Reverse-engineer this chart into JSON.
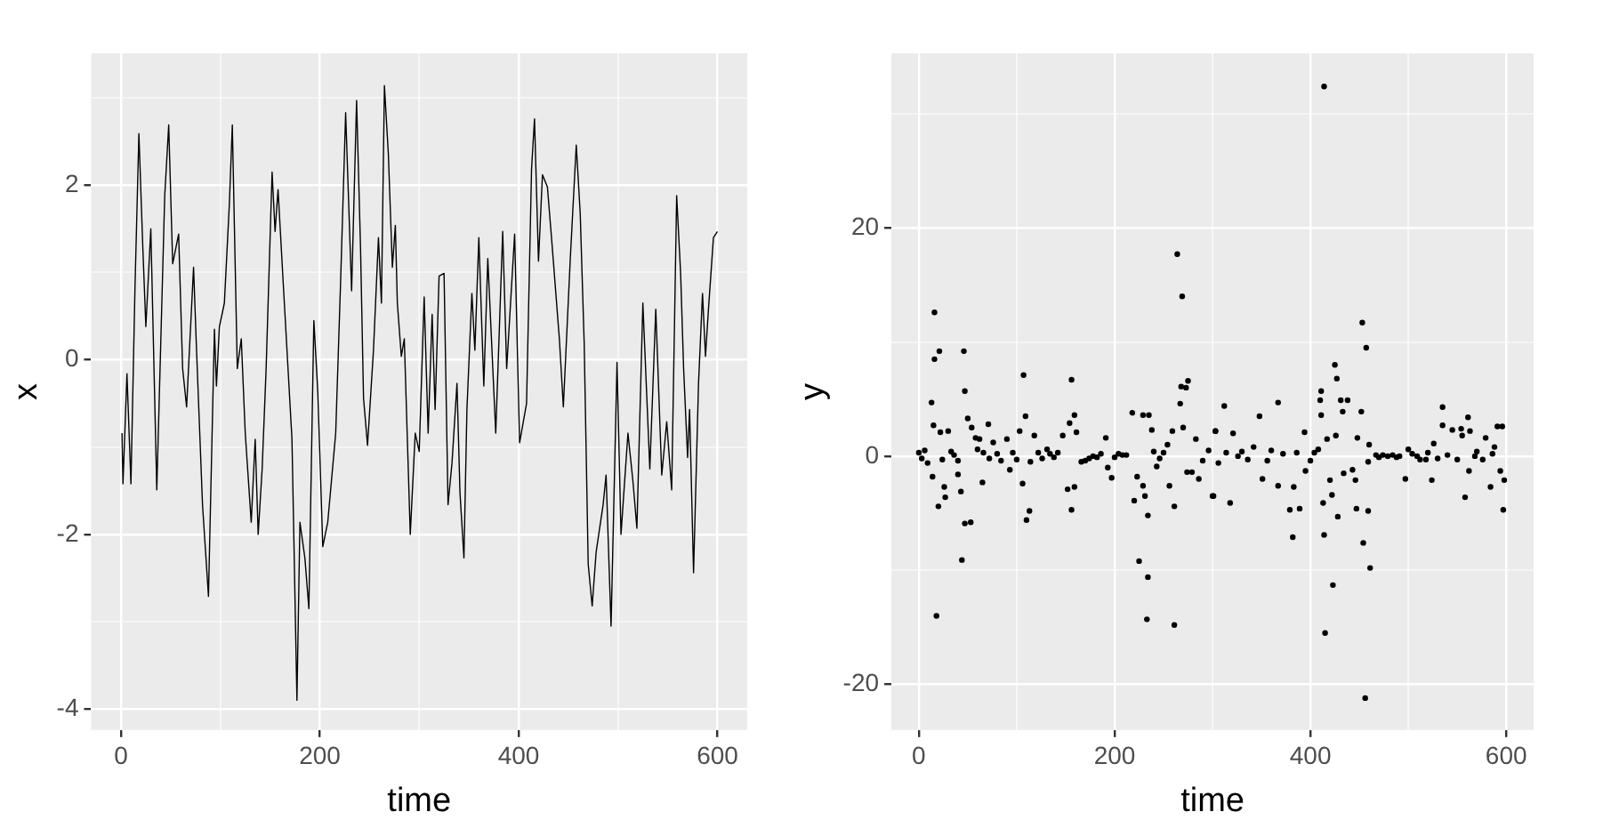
{
  "chart_data": [
    {
      "type": "line",
      "xlabel": "time",
      "ylabel": "x",
      "color": "#000000",
      "marker": "none",
      "line_style": "solid",
      "grid": true,
      "xlim": [
        -30,
        630
      ],
      "ylim": [
        -4.24,
        3.51
      ],
      "xticks": [
        0,
        {
          "value": 100,
          "label": null
        },
        200,
        {
          "value": 300,
          "label": null
        },
        400,
        {
          "value": 500,
          "label": null
        },
        600
      ],
      "yticks": [
        -4,
        {
          "value": -3,
          "label": null
        },
        -2,
        {
          "value": -1,
          "label": null
        },
        0,
        {
          "value": 1,
          "label": null
        },
        2,
        {
          "value": 3,
          "label": null
        }
      ],
      "x": [
        1,
        2,
        6,
        10,
        14,
        18,
        22,
        25,
        30,
        36,
        44,
        48,
        52,
        58,
        62,
        66,
        73,
        76,
        82,
        88,
        94,
        96,
        99,
        104,
        109,
        112,
        117,
        121,
        125,
        131,
        135,
        138,
        142,
        146,
        152,
        155,
        158,
        163,
        169,
        172,
        177,
        180,
        185,
        189,
        194,
        198,
        203,
        208,
        216,
        221,
        226,
        232,
        237,
        241,
        244,
        248,
        254,
        259,
        262,
        265,
        269,
        273,
        276,
        278,
        282,
        285,
        291,
        296,
        300,
        305,
        309,
        313,
        316,
        320,
        325,
        329,
        333,
        338,
        341,
        345,
        348,
        353,
        356,
        360,
        365,
        369,
        377,
        384,
        388,
        396,
        401,
        408,
        413,
        416,
        420,
        424,
        429,
        434,
        441,
        445,
        452,
        458,
        462,
        466,
        470,
        474,
        478,
        485,
        488,
        493,
        499,
        503,
        510,
        515,
        519,
        525,
        532,
        538,
        544,
        549,
        554,
        559,
        563,
        566,
        570,
        572,
        576,
        581,
        585,
        588,
        591,
        596,
        600
      ],
      "values": [
        -0.84,
        -1.42,
        -0.16,
        -1.42,
        0.79,
        2.59,
        1.27,
        0.38,
        1.5,
        -1.49,
        1.88,
        2.69,
        1.1,
        1.44,
        -0.1,
        -0.54,
        1.06,
        0.11,
        -1.66,
        -2.71,
        0.35,
        -0.3,
        0.38,
        0.65,
        1.78,
        2.69,
        -0.1,
        0.24,
        -0.84,
        -1.86,
        -0.91,
        -2.0,
        -1.25,
        -0.1,
        2.15,
        1.47,
        1.95,
        0.92,
        -0.3,
        -0.91,
        -3.9,
        -1.86,
        -2.27,
        -2.85,
        0.45,
        -0.37,
        -2.14,
        -1.86,
        -0.84,
        0.92,
        2.83,
        0.79,
        2.97,
        1.27,
        -0.44,
        -0.98,
        0.11,
        1.4,
        0.65,
        3.14,
        2.35,
        1.06,
        1.54,
        0.65,
        0.04,
        0.24,
        -2.0,
        -0.84,
        -1.05,
        0.72,
        -0.84,
        0.52,
        -0.57,
        0.96,
        0.99,
        -1.66,
        -1.18,
        -0.27,
        -1.52,
        -2.27,
        -0.57,
        0.76,
        0.11,
        1.4,
        -0.3,
        1.16,
        -0.84,
        1.47,
        -0.1,
        1.44,
        -0.95,
        -0.5,
        2.18,
        2.76,
        1.13,
        2.12,
        1.98,
        1.27,
        0.24,
        -0.54,
        1.16,
        2.46,
        1.67,
        0.18,
        -2.34,
        -2.82,
        -2.2,
        -1.66,
        -1.32,
        -3.05,
        -0.03,
        -2.0,
        -0.84,
        -1.39,
        -1.93,
        0.65,
        -1.25,
        0.58,
        -1.32,
        -0.71,
        -1.49,
        1.88,
        0.99,
        -0.1,
        -1.12,
        -0.57,
        -2.44,
        -0.27,
        0.76,
        0.04,
        0.58,
        1.4,
        1.47
      ]
    },
    {
      "type": "scatter",
      "xlabel": "time",
      "ylabel": "y",
      "color": "#000000",
      "marker": "circle",
      "grid": true,
      "xlim": [
        -28,
        628
      ],
      "ylim": [
        -24,
        35.3
      ],
      "xticks": [
        0,
        {
          "value": 100,
          "label": null
        },
        200,
        {
          "value": 300,
          "label": null
        },
        400,
        {
          "value": 500,
          "label": null
        },
        600
      ],
      "yticks": [
        -20,
        {
          "value": -10,
          "label": null
        },
        0,
        {
          "value": 10,
          "label": null
        },
        20,
        {
          "value": 30,
          "label": null
        }
      ],
      "x": [
        16,
        16,
        21,
        13,
        15,
        18,
        20,
        14,
        26,
        27,
        22,
        30,
        46,
        47,
        50,
        44,
        47,
        53,
        43,
        40,
        54,
        58,
        62,
        65,
        71,
        76,
        90,
        93,
        103,
        107,
        109,
        106,
        110,
        113,
        118,
        131,
        147,
        152,
        154,
        156,
        159,
        156,
        159,
        161,
        166,
        178,
        191,
        193,
        197,
        208,
        218,
        220,
        223,
        225,
        229,
        231,
        234,
        234,
        233,
        229,
        235,
        238,
        243,
        254,
        256,
        259,
        261,
        261,
        264,
        269,
        267,
        268,
        273,
        275,
        270,
        274,
        279,
        283,
        286,
        301,
        303,
        300,
        318,
        312,
        303,
        321,
        326,
        348,
        351,
        367,
        367,
        379,
        382,
        383,
        389,
        394,
        395,
        408,
        410,
        411,
        411,
        413,
        414,
        414,
        415,
        417,
        420,
        423,
        425,
        427,
        431,
        433,
        438,
        428,
        422,
        426,
        434,
        443,
        446,
        447,
        448,
        452,
        453,
        454,
        457,
        456,
        459,
        461,
        460,
        459,
        467,
        479,
        491,
        497,
        500,
        509,
        518,
        524,
        526,
        535,
        535,
        545,
        554,
        555,
        558,
        561,
        563,
        562,
        568,
        579,
        584,
        588,
        591,
        594,
        596,
        598,
        597,
        0,
        3,
        6,
        9,
        24,
        33,
        36,
        40,
        60,
        66,
        72,
        80,
        84,
        96,
        100,
        114,
        122,
        126,
        134,
        138,
        142,
        170,
        174,
        182,
        186,
        200,
        204,
        212,
        240,
        246,
        250,
        290,
        296,
        306,
        314,
        330,
        336,
        342,
        356,
        360,
        372,
        386,
        400,
        404,
        470,
        474,
        484,
        488,
        504,
        512,
        520,
        530,
        540,
        550,
        570,
        576,
        586
      ],
      "values": [
        12.6,
        8.5,
        9.2,
        4.7,
        2.7,
        -14,
        -4.4,
        -1.8,
        -2.7,
        -3.6,
        2.1,
        2.2,
        9.2,
        5.7,
        3.3,
        -9.1,
        -5.9,
        -5.8,
        -3.1,
        -1.6,
        2.5,
        1.6,
        1.5,
        -2.3,
        2.8,
        1.2,
        1.5,
        -1.2,
        2.2,
        7.1,
        3.5,
        -2.4,
        -5.6,
        -4.8,
        1.8,
        0.6,
        1.8,
        -2.9,
        2.9,
        6.7,
        3.6,
        -4.7,
        -2.7,
        2.1,
        -0.5,
        0,
        1.6,
        -1,
        -1.9,
        0.1,
        3.8,
        -3.9,
        -1.8,
        -9.2,
        -2.6,
        -3.5,
        -10.6,
        -5.2,
        -14.3,
        3.6,
        3.6,
        2.3,
        -0.9,
        1,
        -2.6,
        2.2,
        -4.4,
        -14.8,
        17.7,
        14,
        4.6,
        6.1,
        6,
        6.6,
        2.5,
        -1.4,
        -1.4,
        1.5,
        -2,
        -3.5,
        2.2,
        -3.5,
        -4.1,
        4.4,
        2.2,
        2,
        0,
        3.5,
        -2,
        4.7,
        -2.6,
        -4.7,
        -7.1,
        -2.7,
        -4.6,
        2.1,
        -1.3,
        0.6,
        4.9,
        5.7,
        3.6,
        -4.1,
        -6.9,
        32.4,
        -15.5,
        1.5,
        -2.1,
        -11.3,
        8,
        6.8,
        4.9,
        3.9,
        4.9,
        -5.3,
        -3.4,
        1.8,
        -1.5,
        -1.2,
        -2.1,
        -4.6,
        1.6,
        3.9,
        11.7,
        -7.6,
        9.5,
        -21.2,
        -4.8,
        -9.8,
        1,
        -0.5,
        0.1,
        0,
        0,
        -2,
        0.6,
        0,
        -0.3,
        -2.1,
        1.1,
        4.3,
        2.7,
        2.3,
        2.4,
        1.8,
        -3.6,
        3.4,
        2.2,
        -1.3,
        0,
        1.6,
        -2.7,
        0.8,
        2.6,
        -1.3,
        2.6,
        -2.1,
        -4.7,
        0.3,
        -0.2,
        0.5,
        -0.6,
        -0.3,
        0.4,
        0.1,
        -0.4,
        0.6,
        0.3,
        -0.2,
        0.2,
        -0.4,
        0.3,
        -0.3,
        -0.5,
        0.3,
        -0.2,
        0.2,
        -0.1,
        0.3,
        -0.4,
        -0.2,
        -0.1,
        0.2,
        -0.1,
        0.2,
        0.1,
        0.4,
        -0.2,
        0.3,
        -0.4,
        0.5,
        -0.6,
        0.3,
        0.4,
        -0.3,
        0.8,
        -0.4,
        0.5,
        0.2,
        0.3,
        -0.4,
        0.3,
        -0.1,
        0.1,
        0.1,
        -0.1,
        0.2,
        -0.3,
        0.3,
        -0.2,
        0.1,
        -0.3,
        0.4,
        -0.3,
        0.2
      ]
    }
  ]
}
